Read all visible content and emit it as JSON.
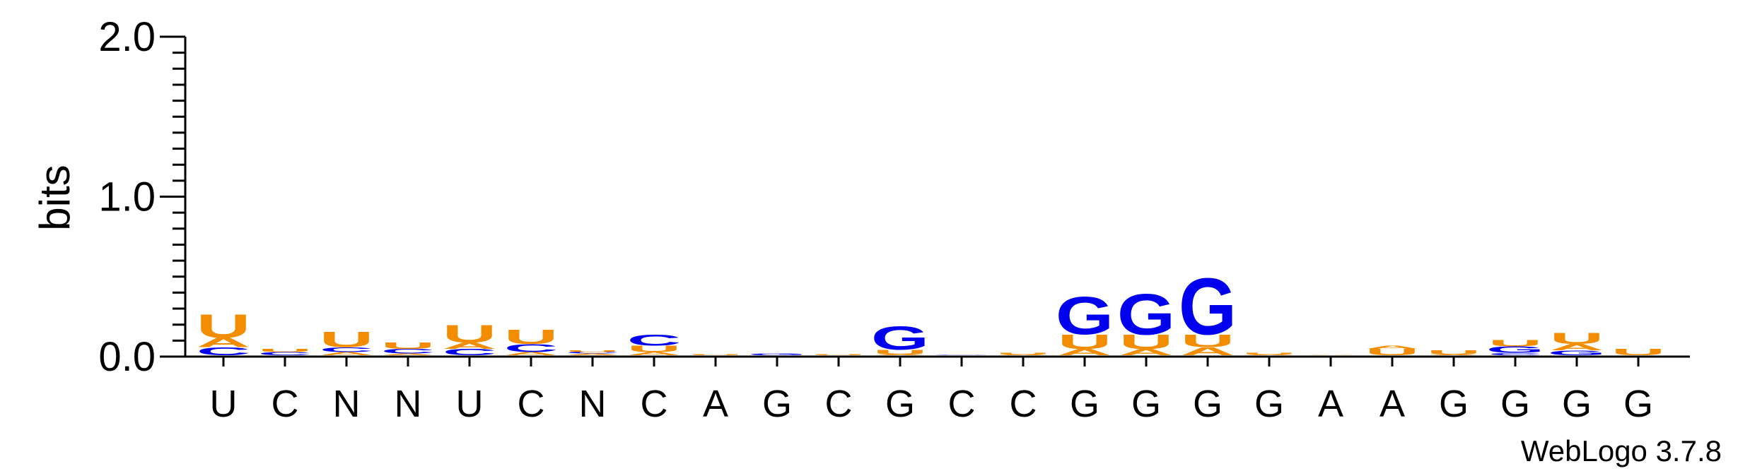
{
  "chart_data": {
    "type": "sequence-logo",
    "ylabel": "bits",
    "ylim": [
      0,
      2
    ],
    "y_ticks": [
      "0.0",
      "1.0",
      "2.0"
    ],
    "x_labels": [
      "U",
      "C",
      "N",
      "N",
      "U",
      "C",
      "N",
      "C",
      "A",
      "G",
      "C",
      "G",
      "C",
      "C",
      "G",
      "G",
      "G",
      "G",
      "A",
      "A",
      "G",
      "G",
      "G",
      "G"
    ],
    "credit": "WebLogo 3.7.8",
    "colors": {
      "A": "#f28c00",
      "U": "#f28c00",
      "G": "#0000ee",
      "C": "#0000ee",
      "axis": "#000000"
    },
    "columns": [
      [
        [
          "C",
          0.05
        ],
        [
          "A",
          0.06
        ],
        [
          "U",
          0.15
        ]
      ],
      [
        [
          "C",
          0.02
        ],
        [
          "U",
          0.02
        ]
      ],
      [
        [
          "A",
          0.02
        ],
        [
          "C",
          0.03
        ],
        [
          "U",
          0.1
        ]
      ],
      [
        [
          "A",
          0.01
        ],
        [
          "C",
          0.03
        ],
        [
          "U",
          0.04
        ]
      ],
      [
        [
          "C",
          0.04
        ],
        [
          "A",
          0.04
        ],
        [
          "U",
          0.11
        ]
      ],
      [
        [
          "A",
          0.02
        ],
        [
          "C",
          0.05
        ],
        [
          "U",
          0.09
        ]
      ],
      [
        [
          "A",
          0.01
        ],
        [
          "C",
          0.01
        ],
        [
          "U",
          0.01
        ]
      ],
      [
        [
          "A",
          0.02
        ],
        [
          "U",
          0.04
        ],
        [
          "C",
          0.07
        ]
      ],
      [
        [
          "U",
          0.005
        ]
      ],
      [
        [
          "G",
          0.01
        ]
      ],
      [
        [
          "U",
          0.005
        ]
      ],
      [
        [
          "A",
          0.005
        ],
        [
          "U",
          0.03
        ],
        [
          "G",
          0.15
        ]
      ],
      [
        [
          "G",
          0.002
        ]
      ],
      [
        [
          "A",
          0.005
        ],
        [
          "U",
          0.01
        ]
      ],
      [
        [
          "A",
          0.04
        ],
        [
          "U",
          0.09
        ],
        [
          "G",
          0.24
        ]
      ],
      [
        [
          "A",
          0.04
        ],
        [
          "U",
          0.09
        ],
        [
          "G",
          0.26
        ]
      ],
      [
        [
          "A",
          0.05
        ],
        [
          "U",
          0.08
        ],
        [
          "G",
          0.36
        ]
      ],
      [
        [
          "A",
          0.005
        ],
        [
          "U",
          0.01
        ]
      ],
      [
        [
          "A",
          0.002
        ]
      ],
      [
        [
          "U",
          0.04
        ],
        [
          "A",
          0.02
        ]
      ],
      [
        [
          "A",
          0.005
        ],
        [
          "U",
          0.025
        ]
      ],
      [
        [
          "C",
          0.015
        ],
        [
          "G",
          0.04
        ],
        [
          "U",
          0.04
        ]
      ],
      [
        [
          "G",
          0.03
        ],
        [
          "A",
          0.04
        ],
        [
          "U",
          0.07
        ]
      ],
      [
        [
          "U",
          0.04
        ]
      ]
    ]
  }
}
